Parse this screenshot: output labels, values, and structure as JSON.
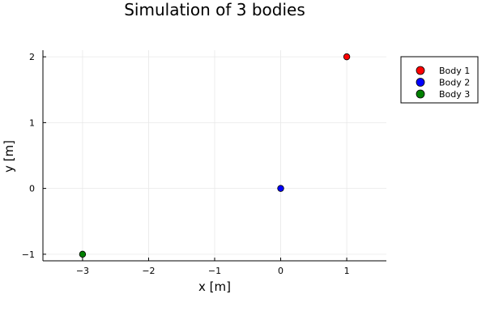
{
  "chart_data": {
    "type": "scatter",
    "title": "Simulation of 3 bodies",
    "xlabel": "x [m]",
    "ylabel": "y [m]",
    "xlim": [
      -3.6,
      1.6
    ],
    "ylim": [
      -1.1,
      2.1
    ],
    "xticks": [
      -3,
      -2,
      -1,
      0,
      1
    ],
    "xtick_labels": [
      "−3",
      "−2",
      "−1",
      "0",
      "1"
    ],
    "yticks": [
      -1,
      0,
      1,
      2
    ],
    "ytick_labels": [
      "−1",
      "0",
      "1",
      "2"
    ],
    "grid": true,
    "legend_position": "outer top-right",
    "series": [
      {
        "name": "Body 1",
        "color": "#ff0000",
        "x": [
          1
        ],
        "y": [
          2
        ]
      },
      {
        "name": "Body 2",
        "color": "#0000ff",
        "x": [
          0
        ],
        "y": [
          0
        ]
      },
      {
        "name": "Body 3",
        "color": "#008000",
        "x": [
          -3
        ],
        "y": [
          -1
        ]
      }
    ]
  }
}
